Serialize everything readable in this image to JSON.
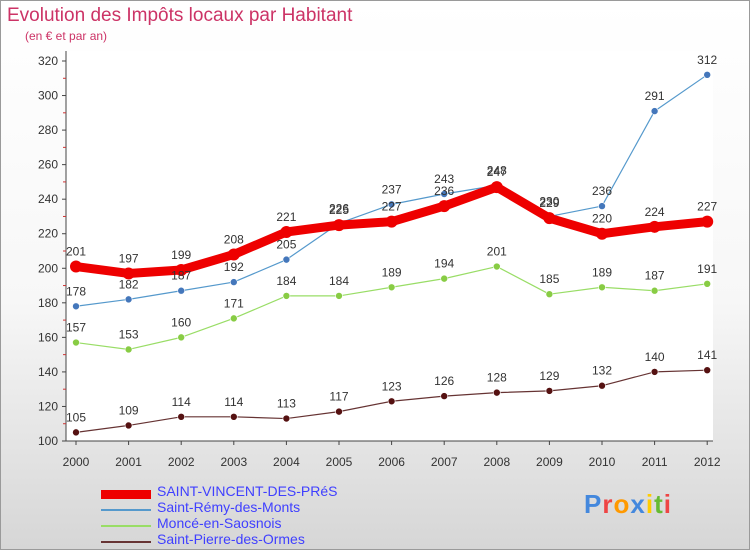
{
  "title": "Evolution des Impôts locaux par Habitant",
  "subtitle": "(en € et par an)",
  "brand": "Proxiti",
  "chart_data": {
    "type": "line",
    "x": [
      "2000",
      "2001",
      "2002",
      "2003",
      "2004",
      "2005",
      "2006",
      "2007",
      "2008",
      "2009",
      "2010",
      "2011",
      "2012"
    ],
    "ylim": [
      100,
      320
    ],
    "yticks": [
      100,
      120,
      140,
      160,
      180,
      200,
      220,
      240,
      260,
      280,
      300,
      320
    ],
    "grid": false,
    "legend_position": "bottom-left",
    "series": [
      {
        "name": "SAINT-VINCENT-DES-PRéS",
        "color": "#ee0000",
        "values": [
          201,
          197,
          199,
          208,
          221,
          225,
          227,
          236,
          247,
          229,
          220,
          224,
          227
        ]
      },
      {
        "name": "Saint-Rémy-des-Monts",
        "color": "#5599cc",
        "values": [
          178,
          182,
          187,
          192,
          205,
          226,
          237,
          243,
          248,
          230,
          236,
          291,
          312
        ]
      },
      {
        "name": "Moncé-en-Saosnois",
        "color": "#99dd66",
        "values": [
          157,
          153,
          160,
          171,
          184,
          184,
          189,
          194,
          201,
          185,
          189,
          187,
          191
        ]
      },
      {
        "name": "Saint-Pierre-des-Ormes",
        "color": "#663333",
        "values": [
          105,
          109,
          114,
          114,
          113,
          117,
          123,
          126,
          128,
          129,
          132,
          140,
          141
        ]
      }
    ]
  }
}
